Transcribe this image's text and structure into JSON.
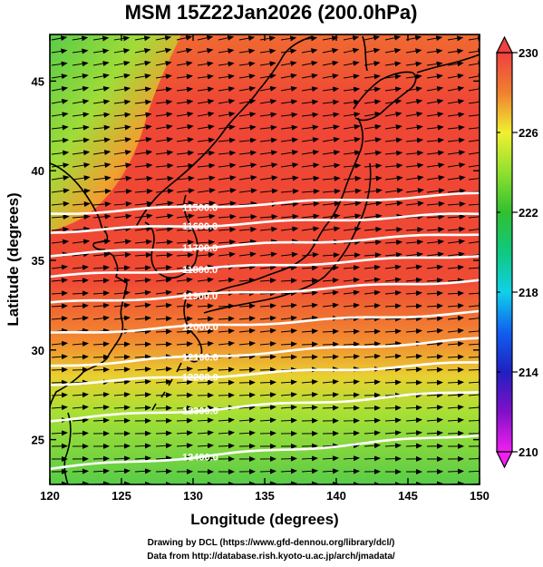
{
  "title": "MSM 15Z22Jan2026 (200.0hPa)",
  "xlabel": "Longitude (degrees)",
  "ylabel": "Latitude  (degrees)",
  "credits": [
    "Drawing by DCL (https://www.gfd-dennou.org/library/dcl/)",
    "Data from http://database.rish.kyoto-u.ac.jp/arch/jmadata/"
  ],
  "map": {
    "lon_range": [
      120,
      150
    ],
    "lat_range": [
      22.5,
      47.6
    ],
    "lon_ticks": [
      {
        "value": 120,
        "label": "120"
      },
      {
        "value": 125,
        "label": "125"
      },
      {
        "value": 130,
        "label": "130"
      },
      {
        "value": 135,
        "label": "135"
      },
      {
        "value": 140,
        "label": "140"
      },
      {
        "value": 145,
        "label": "145"
      },
      {
        "value": 150,
        "label": "150"
      }
    ],
    "lat_ticks": [
      {
        "value": 25,
        "label": "25"
      },
      {
        "value": 30,
        "label": "30"
      },
      {
        "value": 35,
        "label": "35"
      },
      {
        "value": 40,
        "label": "40"
      },
      {
        "value": 45,
        "label": "45"
      }
    ],
    "field": "temperature",
    "wind_direction": "westerly",
    "colors": {
      "warm": "#ef4535",
      "mid": "#f28a30",
      "yellow": "#e0e030",
      "green": "#60d048"
    }
  },
  "colorbar": {
    "min": 210,
    "max": 230,
    "labels": [
      "230",
      "226",
      "222",
      "218",
      "214",
      "210"
    ],
    "label_values": [
      230,
      226,
      222,
      218,
      214,
      210
    ],
    "stops": [
      {
        "value": 210,
        "color": "#f020f0"
      },
      {
        "value": 212,
        "color": "#8010c8"
      },
      {
        "value": 214,
        "color": "#2020c0"
      },
      {
        "value": 216,
        "color": "#1060f0"
      },
      {
        "value": 218,
        "color": "#10d0e8"
      },
      {
        "value": 220,
        "color": "#10c880"
      },
      {
        "value": 222,
        "color": "#30c030"
      },
      {
        "value": 224,
        "color": "#90e030"
      },
      {
        "value": 226,
        "color": "#f0f030"
      },
      {
        "value": 228,
        "color": "#f08030"
      },
      {
        "value": 230,
        "color": "#f04040"
      }
    ]
  },
  "contours": [
    {
      "label": "11500.0",
      "lat_start": 37.6,
      "lat_end": 38.7
    },
    {
      "label": "11600.0",
      "lat_start": 36.6,
      "lat_end": 37.6
    },
    {
      "label": "11700.0",
      "lat_start": 35.3,
      "lat_end": 36.5
    },
    {
      "label": "11800.0",
      "lat_start": 34.1,
      "lat_end": 35.3
    },
    {
      "label": "11900.0",
      "lat_start": 32.6,
      "lat_end": 33.9
    },
    {
      "label": "12000.0",
      "lat_start": 30.9,
      "lat_end": 32.1
    },
    {
      "label": "12100.0",
      "lat_start": 29.1,
      "lat_end": 30.6
    },
    {
      "label": "12200.0",
      "lat_start": 28.1,
      "lat_end": 29.3
    },
    {
      "label": "12300.0",
      "lat_start": 26.1,
      "lat_end": 27.7
    },
    {
      "label": "12400.0",
      "lat_start": 23.4,
      "lat_end": 25.3
    }
  ]
}
